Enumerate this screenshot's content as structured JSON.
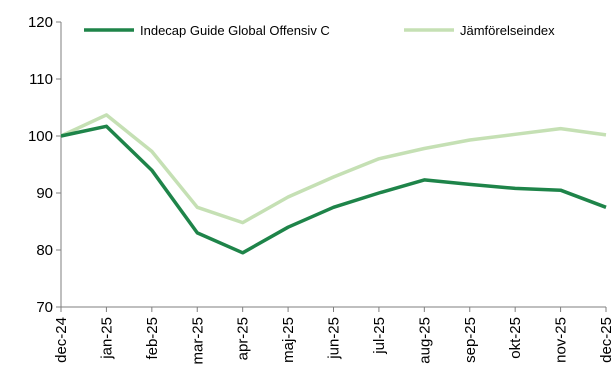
{
  "chart_data": {
    "type": "line",
    "title": "",
    "xlabel": "",
    "ylabel": "",
    "categories": [
      "dec-24",
      "jan-25",
      "feb-25",
      "mar-25",
      "apr-25",
      "maj-25",
      "jun-25",
      "jul-25",
      "aug-25",
      "sep-25",
      "okt-25",
      "nov-25",
      "dec-25"
    ],
    "ylim": [
      70,
      120
    ],
    "yticks": [
      70,
      80,
      90,
      100,
      110,
      120
    ],
    "grid": false,
    "legend_position": "top",
    "series": [
      {
        "name": "Indecap Guide Global Offensiv C",
        "color": "#1e8449",
        "values": [
          100,
          101.7,
          94,
          83,
          79.5,
          84,
          87.5,
          90,
          92.3,
          91.5,
          90.8,
          90.5,
          87.5
        ]
      },
      {
        "name": "Jämförelseindex",
        "color": "#c5e0b4",
        "values": [
          100,
          103.7,
          97.3,
          87.5,
          84.8,
          89.3,
          92.8,
          96,
          97.8,
          99.3,
          100.3,
          101.3,
          100.2
        ]
      }
    ]
  }
}
